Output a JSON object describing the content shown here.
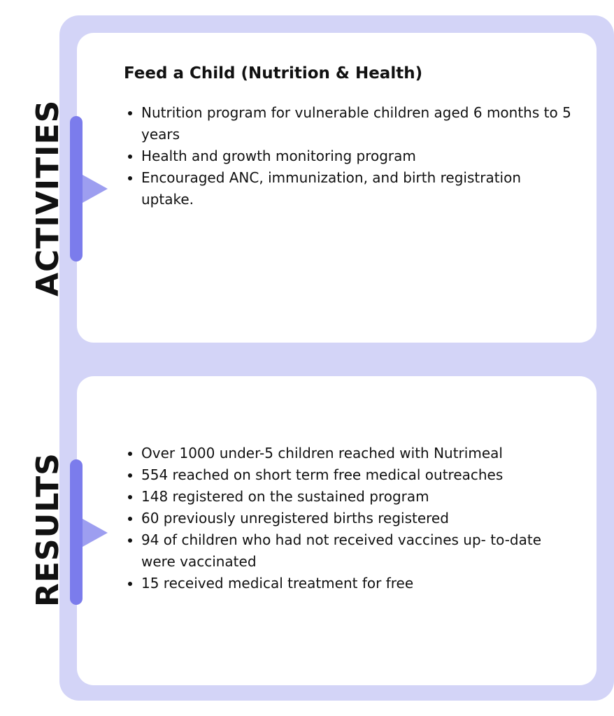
{
  "colors": {
    "frame": "#d3d4f7",
    "bar": "#7b7cec",
    "pointer": "#9d9ef0"
  },
  "activities": {
    "label": "ACTIVITIES",
    "title": "Feed a Child (Nutrition & Health)",
    "items": [
      "Nutrition program for vulnerable children aged 6 months to 5 years",
      "Health and growth monitoring program",
      "Encouraged ANC, immunization, and birth registration uptake."
    ]
  },
  "results": {
    "label": "RESULTS",
    "items": [
      "Over 1000 under-5 children reached with Nutrimeal",
      "554 reached on short term free medical outreaches",
      "148 registered on the sustained program",
      "60 previously unregistered births registered",
      "94 of children who had not received vaccines up- to-date were vaccinated",
      "15 received medical treatment for free"
    ]
  }
}
